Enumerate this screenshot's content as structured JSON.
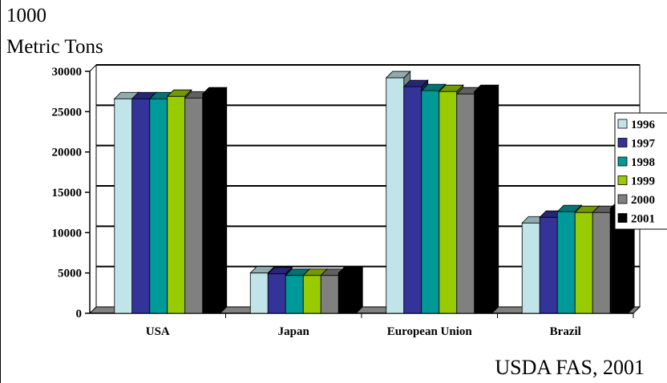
{
  "units_label": {
    "line1": "1000",
    "line2": "Metric Tons"
  },
  "source_note": "USDA FAS, 2001",
  "chart_data": {
    "type": "bar",
    "title": "",
    "xlabel": "",
    "ylabel": "1000 Metric Tons",
    "ylim": [
      0,
      30000
    ],
    "yticks": [
      0,
      5000,
      10000,
      15000,
      20000,
      25000,
      30000
    ],
    "grid": true,
    "legend_position": "right",
    "categories": [
      "USA",
      "Japan",
      "European Union",
      "Brazil"
    ],
    "series": [
      {
        "name": "1996",
        "color": "#c0e4e8",
        "values": [
          26600,
          5000,
          29200,
          11200
        ]
      },
      {
        "name": "1997",
        "color": "#33339a",
        "values": [
          26600,
          4900,
          28100,
          11900
        ]
      },
      {
        "name": "1998",
        "color": "#009999",
        "values": [
          26600,
          4700,
          27600,
          12600
        ]
      },
      {
        "name": "1999",
        "color": "#99cc00",
        "values": [
          26900,
          4700,
          27500,
          12500
        ]
      },
      {
        "name": "2000",
        "color": "#808080",
        "values": [
          26700,
          4700,
          27200,
          12500
        ]
      },
      {
        "name": "2001",
        "color": "#000000",
        "values": [
          27200,
          5000,
          27500,
          13000
        ]
      }
    ]
  }
}
